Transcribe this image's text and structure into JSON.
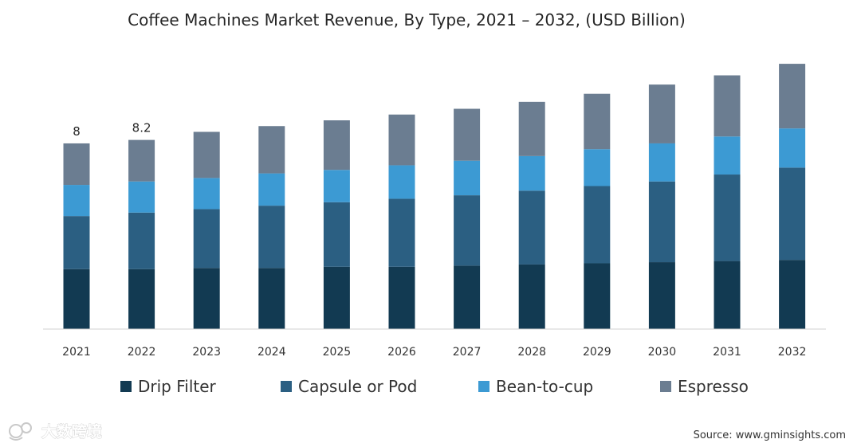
{
  "chart_data": {
    "type": "bar",
    "stacked": true,
    "title": "Coffee Machines Market Revenue, By Type, 2021 – 2032, (USD Billion)",
    "xlabel": "",
    "ylabel": "",
    "grid": false,
    "legend_position": "bottom",
    "ylim": [
      0,
      12
    ],
    "categories": [
      "2021",
      "2022",
      "2023",
      "2024",
      "2025",
      "2026",
      "2027",
      "2028",
      "2029",
      "2030",
      "2031",
      "2032"
    ],
    "series": [
      {
        "name": "Drip Filter",
        "color": "#123a52",
        "values": [
          2.6,
          2.6,
          2.65,
          2.65,
          2.7,
          2.7,
          2.75,
          2.8,
          2.85,
          2.9,
          2.95,
          3.0
        ]
      },
      {
        "name": "Capsule or Pod",
        "color": "#2b5f82",
        "values": [
          2.3,
          2.45,
          2.55,
          2.7,
          2.8,
          2.95,
          3.05,
          3.2,
          3.35,
          3.5,
          3.75,
          4.0
        ]
      },
      {
        "name": "Bean-to-cup",
        "color": "#3c9ad3",
        "values": [
          1.35,
          1.35,
          1.35,
          1.4,
          1.4,
          1.45,
          1.5,
          1.5,
          1.6,
          1.65,
          1.65,
          1.7
        ]
      },
      {
        "name": "Espresso",
        "color": "#6b7d91",
        "values": [
          1.8,
          1.8,
          2.0,
          2.05,
          2.15,
          2.2,
          2.25,
          2.35,
          2.4,
          2.55,
          2.65,
          2.8
        ]
      }
    ],
    "totals": [
      8.0,
      8.2,
      8.55,
      8.8,
      9.05,
      9.3,
      9.55,
      9.85,
      10.2,
      10.6,
      11.0,
      11.5
    ],
    "data_labels": [
      {
        "category": "2021",
        "text": "8"
      },
      {
        "category": "2022",
        "text": "8.2"
      }
    ]
  },
  "source": "Source: www.gminsights.com",
  "watermark": "大数跨境"
}
